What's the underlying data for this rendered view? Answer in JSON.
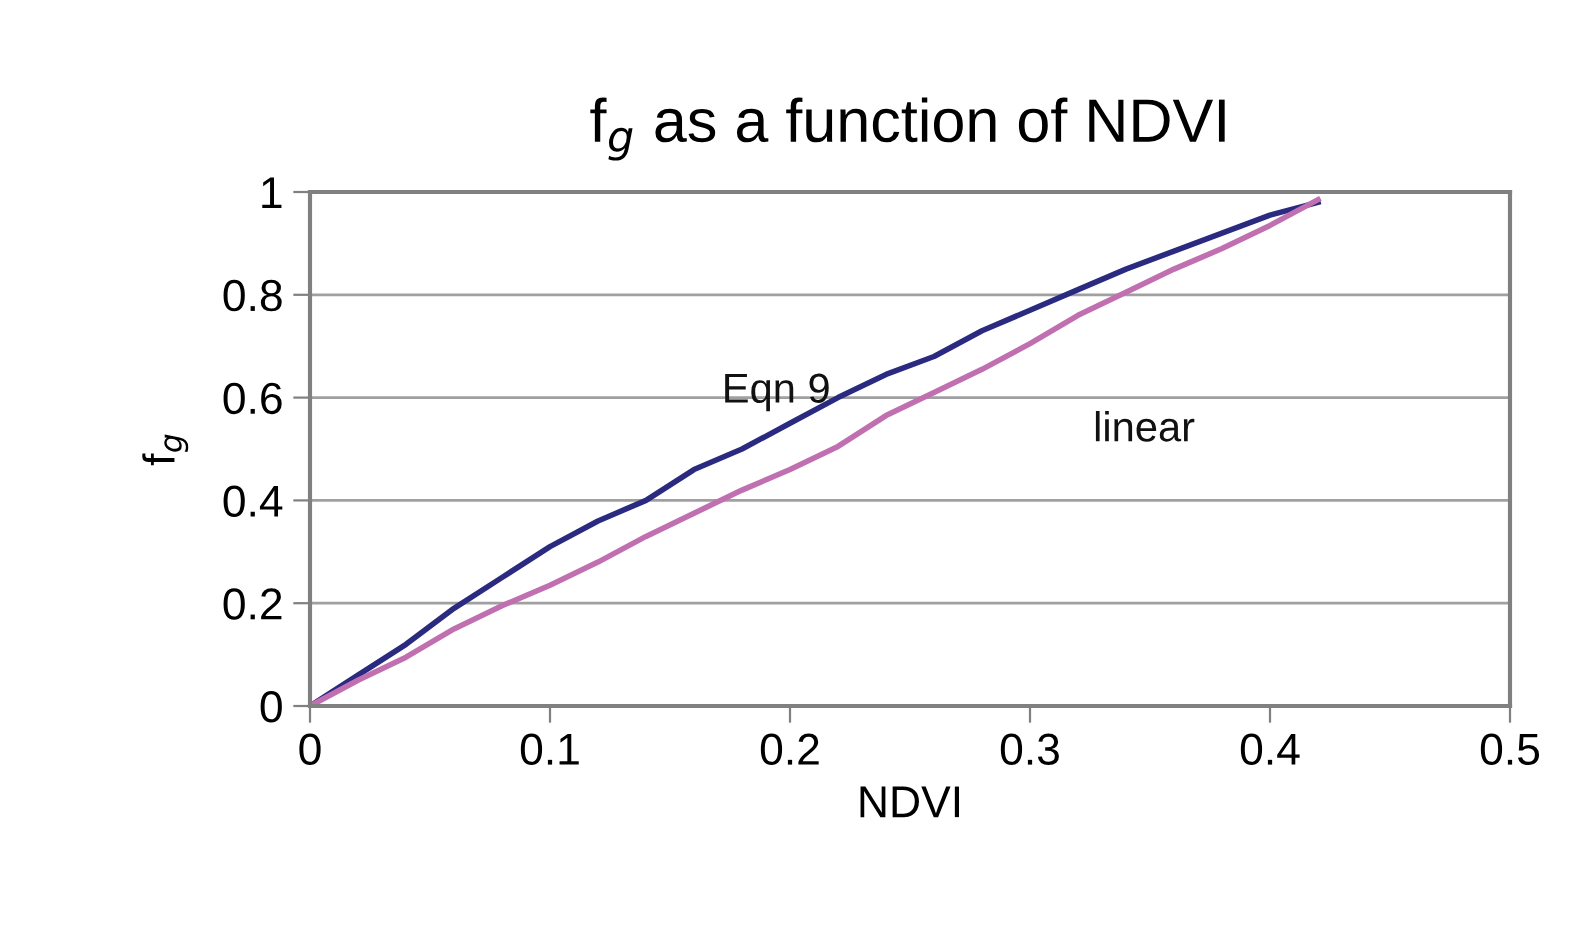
{
  "chart_data": {
    "type": "line",
    "title": "f$_{g}$ as a function of NDVI",
    "xlabel": "NDVI",
    "ylabel": "f$_{g}$",
    "x": [
      0,
      0.02,
      0.04,
      0.06,
      0.08,
      0.1,
      0.12,
      0.14,
      0.16,
      0.18,
      0.2,
      0.22,
      0.24,
      0.26,
      0.28,
      0.3,
      0.32,
      0.34,
      0.36,
      0.38,
      0.4,
      0.42
    ],
    "series": [
      {
        "name": "Eqn 9",
        "color": "#2a2a80",
        "values": [
          0,
          0.06,
          0.12,
          0.19,
          0.25,
          0.31,
          0.36,
          0.4,
          0.46,
          0.5,
          0.55,
          0.6,
          0.645,
          0.68,
          0.73,
          0.77,
          0.81,
          0.85,
          0.885,
          0.92,
          0.955,
          0.98
        ]
      },
      {
        "name": "linear",
        "color": "#c070b0",
        "values": [
          0,
          0.05,
          0.095,
          0.15,
          0.195,
          0.235,
          0.28,
          0.33,
          0.375,
          0.42,
          0.46,
          0.505,
          0.565,
          0.61,
          0.655,
          0.705,
          0.76,
          0.805,
          0.85,
          0.89,
          0.935,
          0.985
        ]
      }
    ],
    "xlim": [
      0,
      0.5
    ],
    "ylim": [
      0,
      1
    ],
    "xticks": [
      0,
      0.1,
      0.2,
      0.3,
      0.4,
      0.5
    ],
    "yticks": [
      0,
      0.2,
      0.4,
      0.6,
      0.8,
      1
    ],
    "grid": "y",
    "legend": false,
    "marker": "none",
    "line_style": "solid"
  }
}
